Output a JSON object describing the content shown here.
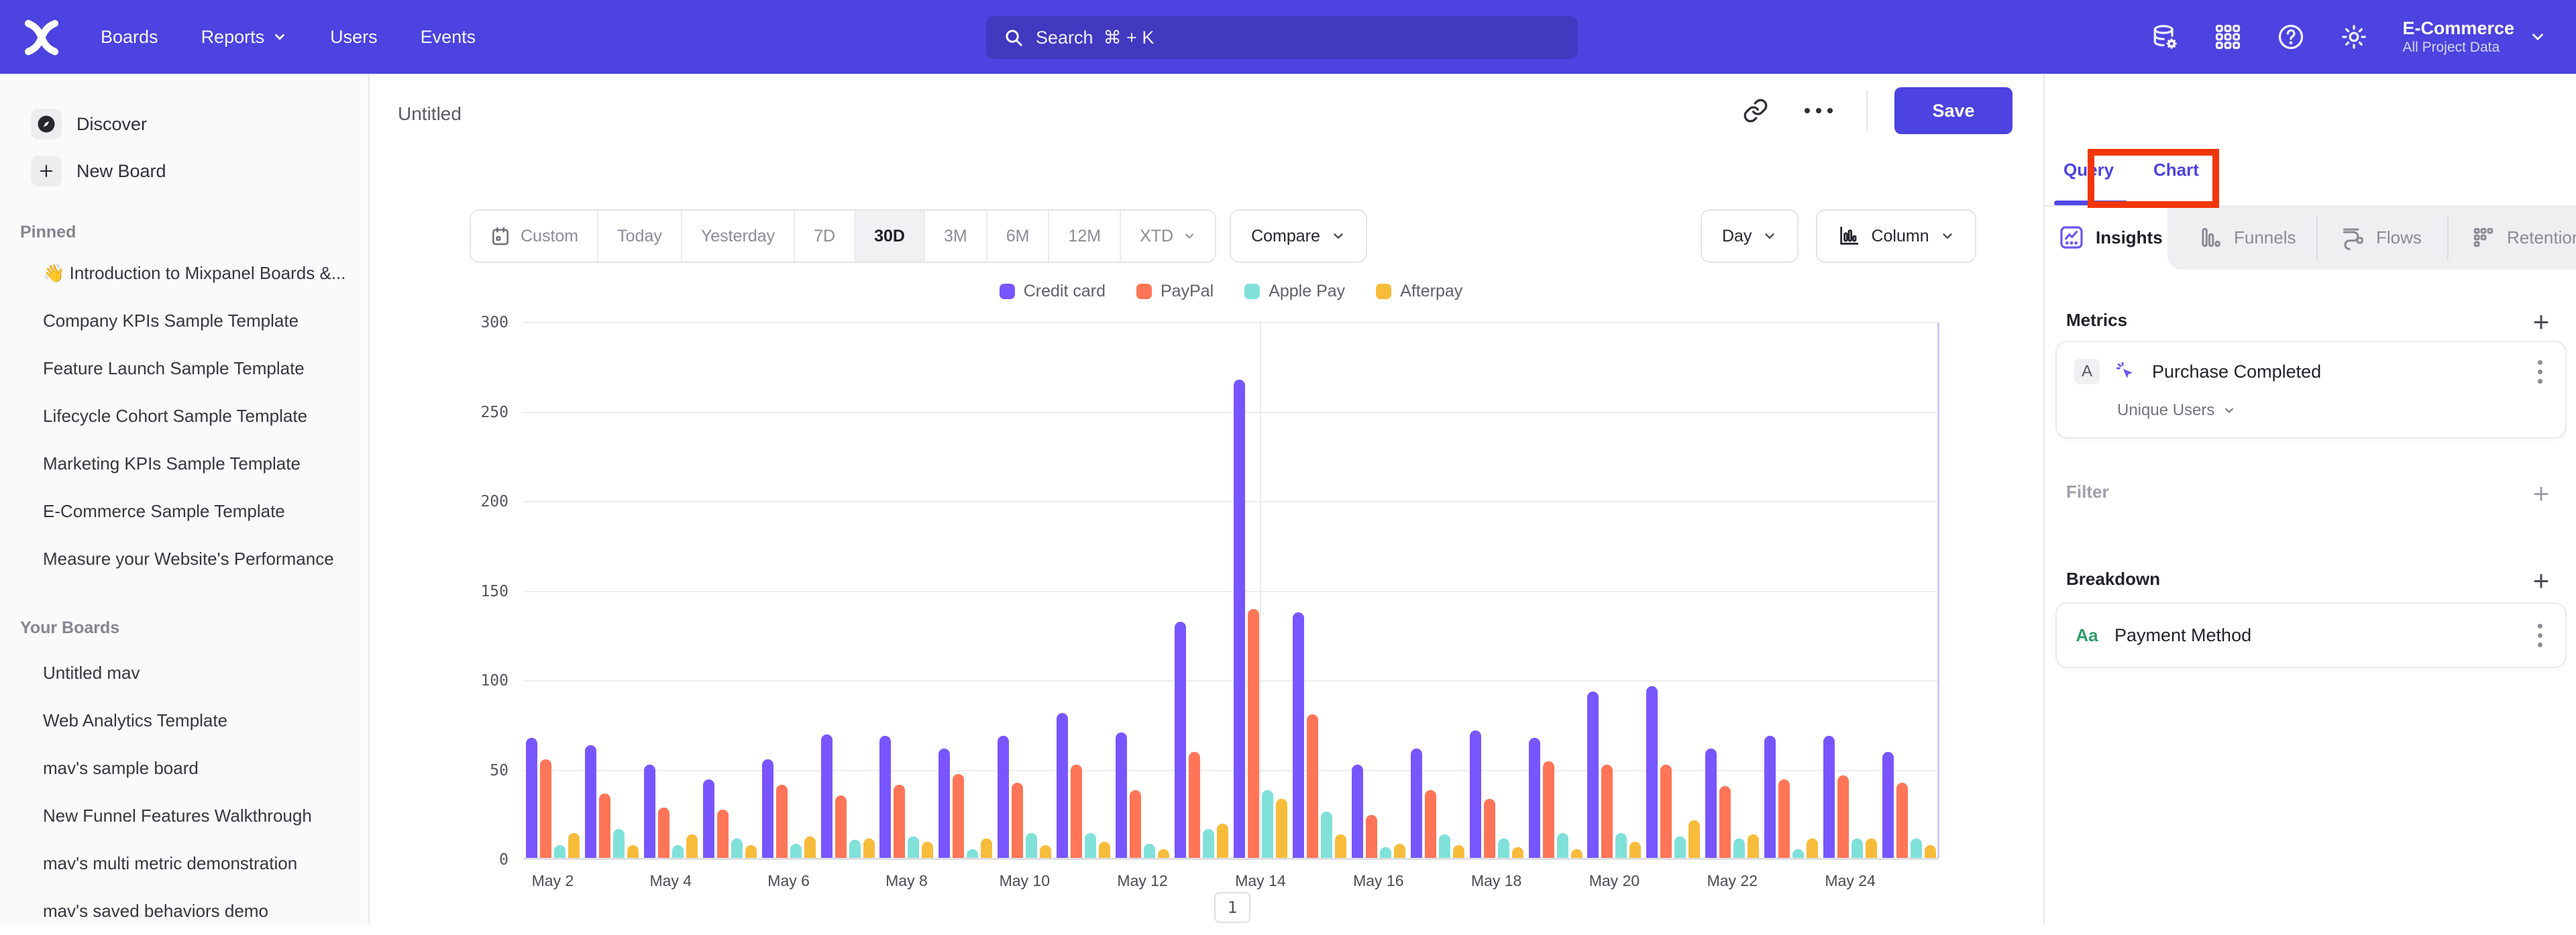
{
  "colors": {
    "nav_background": "#4C43E0",
    "accent": "#4C43E0",
    "annotation_red": "#F2360C",
    "series_purple": "#7856FF",
    "series_coral": "#FF7557",
    "series_teal": "#80E1D9",
    "series_yellow": "#F8BC3B"
  },
  "nav": {
    "items": [
      "Boards",
      "Reports",
      "Users",
      "Events"
    ],
    "search": {
      "placeholder": "Search",
      "shortcut": "⌘ + K"
    },
    "project": {
      "name": "E-Commerce",
      "scope": "All Project Data"
    }
  },
  "sidebar": {
    "discover_label": "Discover",
    "new_board_label": "New Board",
    "pinned_label": "Pinned",
    "pinned": [
      "👋 Introduction to Mixpanel Boards &...",
      "Company KPIs Sample Template",
      "Feature Launch Sample Template",
      "Lifecycle Cohort Sample Template",
      "Marketing KPIs Sample Template",
      "E-Commerce Sample Template",
      "Measure your Website's Performance"
    ],
    "your_boards_label": "Your Boards",
    "your_boards": [
      "Untitled mav",
      "Web Analytics Template",
      "mav's sample board",
      "New Funnel Features Walkthrough",
      "mav's multi metric demonstration",
      "mav's saved behaviors demo"
    ]
  },
  "board_header": {
    "title": "Untitled",
    "save_label": "Save"
  },
  "toolbar": {
    "ranges": [
      "Custom",
      "Today",
      "Yesterday",
      "7D",
      "30D",
      "3M",
      "6M",
      "12M",
      "XTD"
    ],
    "active_range": "30D",
    "compare_label": "Compare",
    "granularity": "Day",
    "chart_type": "Column"
  },
  "chart_data": {
    "type": "bar",
    "title": "",
    "xlabel": "",
    "ylabel": "",
    "ylim": [
      0,
      300
    ],
    "yticks": [
      0,
      50,
      100,
      150,
      200,
      250,
      300
    ],
    "grid": "horizontal",
    "legend_position": "top",
    "x_tick_every": 2,
    "highlight_vline_category": "May 14",
    "categories": [
      "May 2",
      "May 3",
      "May 4",
      "May 5",
      "May 6",
      "May 7",
      "May 8",
      "May 9",
      "May 10",
      "May 11",
      "May 12",
      "May 13",
      "May 14",
      "May 15",
      "May 16",
      "May 17",
      "May 18",
      "May 19",
      "May 20",
      "May 21",
      "May 22",
      "May 23",
      "May 24",
      "May 25"
    ],
    "series": [
      {
        "name": "Credit card",
        "color": "#7856FF",
        "values": [
          67,
          63,
          52,
          44,
          55,
          69,
          68,
          61,
          68,
          81,
          70,
          132,
          267,
          137,
          52,
          61,
          71,
          67,
          93,
          96,
          61,
          68,
          68,
          59
        ]
      },
      {
        "name": "PayPal",
        "color": "#FF7557",
        "values": [
          55,
          36,
          28,
          27,
          41,
          35,
          41,
          47,
          42,
          52,
          38,
          59,
          139,
          80,
          24,
          38,
          33,
          54,
          52,
          52,
          40,
          44,
          46,
          42
        ]
      },
      {
        "name": "Apple Pay",
        "color": "#80E1D9",
        "values": [
          7,
          16,
          7,
          11,
          8,
          10,
          12,
          5,
          14,
          14,
          8,
          16,
          38,
          26,
          6,
          13,
          11,
          14,
          14,
          12,
          11,
          5,
          11,
          11
        ]
      },
      {
        "name": "Afterpay",
        "color": "#F8BC3B",
        "values": [
          14,
          7,
          13,
          7,
          12,
          11,
          9,
          11,
          7,
          9,
          5,
          19,
          33,
          13,
          8,
          7,
          6,
          5,
          9,
          21,
          13,
          11,
          11,
          7
        ]
      }
    ]
  },
  "pagination": "1",
  "panel": {
    "tabs": [
      "Query",
      "Chart"
    ],
    "active_tab": "Query",
    "report_types": [
      "Insights",
      "Funnels",
      "Flows",
      "Retention"
    ],
    "active_report": "Insights",
    "metrics": {
      "label": "Metrics",
      "items": [
        {
          "badge": "A",
          "name": "Purchase Completed",
          "aggregation": "Unique Users"
        }
      ]
    },
    "filter": {
      "label": "Filter"
    },
    "breakdown": {
      "label": "Breakdown",
      "items": [
        {
          "type": "Aa",
          "name": "Payment Method"
        }
      ]
    }
  },
  "annotation": {
    "shape": "red-box",
    "target": "chart-tab",
    "color": "#F2360C"
  }
}
